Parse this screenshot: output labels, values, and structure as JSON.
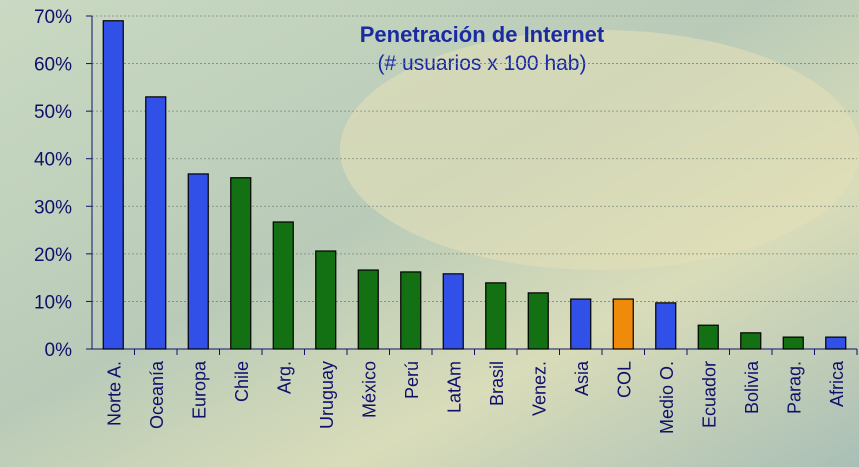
{
  "chart_data": {
    "type": "bar",
    "title": "Penetración de Internet",
    "subtitle": "(# usuarios x 100 hab)",
    "categories": [
      "Norte A.",
      "Oceanía",
      "Europa",
      "Chile",
      "Arg.",
      "Uruguay",
      "México",
      "Perú",
      "LatAm",
      "Brasil",
      "Venez.",
      "Asia",
      "COL",
      "Medio O.",
      "Ecuador",
      "Bolivia",
      "Parag.",
      "Africa"
    ],
    "values": [
      69,
      53,
      36.8,
      36,
      26.7,
      20.6,
      16.6,
      16.2,
      15.8,
      13.9,
      11.8,
      10.5,
      10.5,
      9.7,
      5,
      3.4,
      2.5,
      2.5
    ],
    "colors": [
      "#3050e8",
      "#3050e8",
      "#3050e8",
      "#137013",
      "#137013",
      "#137013",
      "#137013",
      "#137013",
      "#3050e8",
      "#137013",
      "#137013",
      "#3050e8",
      "#f08a0a",
      "#3050e8",
      "#137013",
      "#137013",
      "#137013",
      "#3050e8"
    ],
    "ylim": [
      0,
      70
    ],
    "yticks": [
      {
        "value": 0,
        "label": "0%"
      },
      {
        "value": 10,
        "label": "10%"
      },
      {
        "value": 20,
        "label": "20%"
      },
      {
        "value": 30,
        "label": "30%"
      },
      {
        "value": 40,
        "label": "40%"
      },
      {
        "value": 50,
        "label": "50%"
      },
      {
        "value": 60,
        "label": "60%"
      },
      {
        "value": 70,
        "label": "70%"
      }
    ],
    "grid": true
  }
}
